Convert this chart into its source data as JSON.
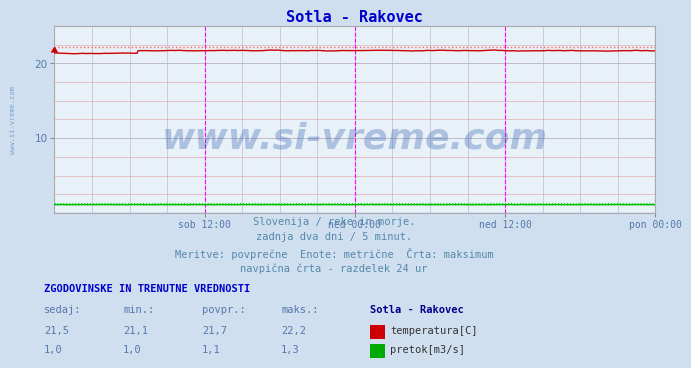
{
  "title": "Sotla - Rakovec",
  "title_color": "#0000cc",
  "bg_color": "#d0dff0",
  "plot_bg_color": "#e8f0f8",
  "y_min": 0,
  "y_max": 25,
  "y_ticks": [
    10,
    20
  ],
  "x_tick_labels": [
    "sob 12:00",
    "ned 00:00",
    "ned 12:00",
    "pon 00:00"
  ],
  "x_tick_positions": [
    0.25,
    0.5,
    0.75,
    1.0
  ],
  "temp_color": "#cc0000",
  "pretok_color": "#00bb00",
  "temp_dotted_color": "#ff6666",
  "pretok_dotted_color": "#00dd00",
  "pretok_baseline_color": "#0000cc",
  "vline_color": "#ff00ff",
  "watermark": "www.si-vreme.com",
  "watermark_color": "#2255aa",
  "watermark_alpha": 0.3,
  "sidewmark_color": "#4477bb",
  "footer_lines": [
    "Slovenija / reke in morje.",
    "zadnja dva dni / 5 minut.",
    "Meritve: povprečne  Enote: metrične  Črta: maksimum",
    "navpična črta - razdelek 24 ur"
  ],
  "footer_color": "#5588aa",
  "table_header": "ZGODOVINSKE IN TRENUTNE VREDNOSTI",
  "table_header_color": "#0000cc",
  "col_headers": [
    "sedaj:",
    "min.:",
    "povpr.:",
    "maks.:",
    "Sotla - Rakovec"
  ],
  "row1": [
    "21,5",
    "21,1",
    "21,7",
    "22,2"
  ],
  "row2": [
    "1,0",
    "1,0",
    "1,1",
    "1,3"
  ],
  "row1_label": "temperatura[C]",
  "row2_label": "pretok[m3/s]",
  "temp_swatch": "#cc0000",
  "pretok_swatch": "#00aa00",
  "n_points": 576,
  "temp_max": 22.2,
  "pretok_max": 1.3,
  "temp_avg": 21.7,
  "pretok_avg": 1.1
}
